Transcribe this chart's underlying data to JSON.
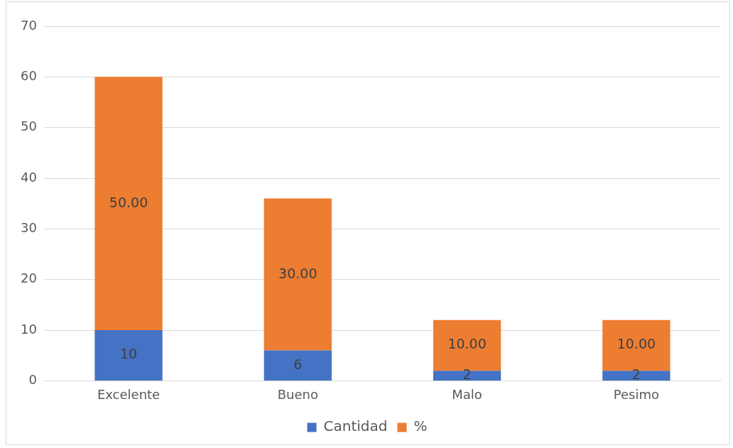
{
  "chart_data": {
    "type": "bar",
    "stacked": true,
    "categories": [
      "Excelente",
      "Bueno",
      "Malo",
      "Pesimo"
    ],
    "series": [
      {
        "name": "Cantidad",
        "color": "#4472c4",
        "values": [
          10,
          6,
          2,
          2
        ],
        "value_labels": [
          "10",
          "6",
          "2",
          "2"
        ]
      },
      {
        "name": "%",
        "color": "#ed7d31",
        "values": [
          50,
          30,
          10,
          10
        ],
        "value_labels": [
          "50.00",
          "30.00",
          "10.00",
          "10.00"
        ]
      }
    ],
    "ylim": [
      0,
      70
    ],
    "yticks": [
      0,
      10,
      20,
      30,
      40,
      50,
      60,
      70
    ],
    "grid": "y",
    "legend": "bottom"
  }
}
